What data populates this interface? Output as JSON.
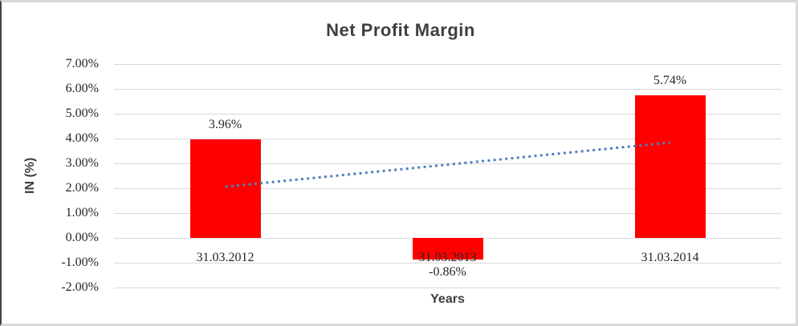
{
  "chart_data": {
    "type": "bar",
    "title": "Net Profit Margin",
    "xlabel": "Years",
    "ylabel": "IN (%)",
    "categories": [
      "31.03.2012",
      "31.03.2013",
      "31.03.2014"
    ],
    "values": [
      3.96,
      -0.86,
      5.74
    ],
    "value_labels": [
      "3.96%",
      "-0.86%",
      "5.74%"
    ],
    "y_tick_values": [
      7,
      6,
      5,
      4,
      3,
      2,
      1,
      0,
      -1,
      -2
    ],
    "y_tick_labels": [
      "7.00%",
      "6.00%",
      "5.00%",
      "4.00%",
      "3.00%",
      "2.00%",
      "1.00%",
      "0.00%",
      "-1.00%",
      "-2.00%"
    ],
    "ylim": [
      -2,
      7
    ],
    "grid": true,
    "legend": "none",
    "trendline": {
      "style": "dotted",
      "x_span_categories": [
        0,
        2
      ],
      "y_values": [
        2.06,
        3.84
      ],
      "color": "#4f81bd"
    },
    "colors": {
      "bar": "#ff0000",
      "gridline": "#d9d9d9",
      "axis_text": "#262626",
      "title_text": "#3f3f3f",
      "trendline": "#4f81bd"
    }
  }
}
